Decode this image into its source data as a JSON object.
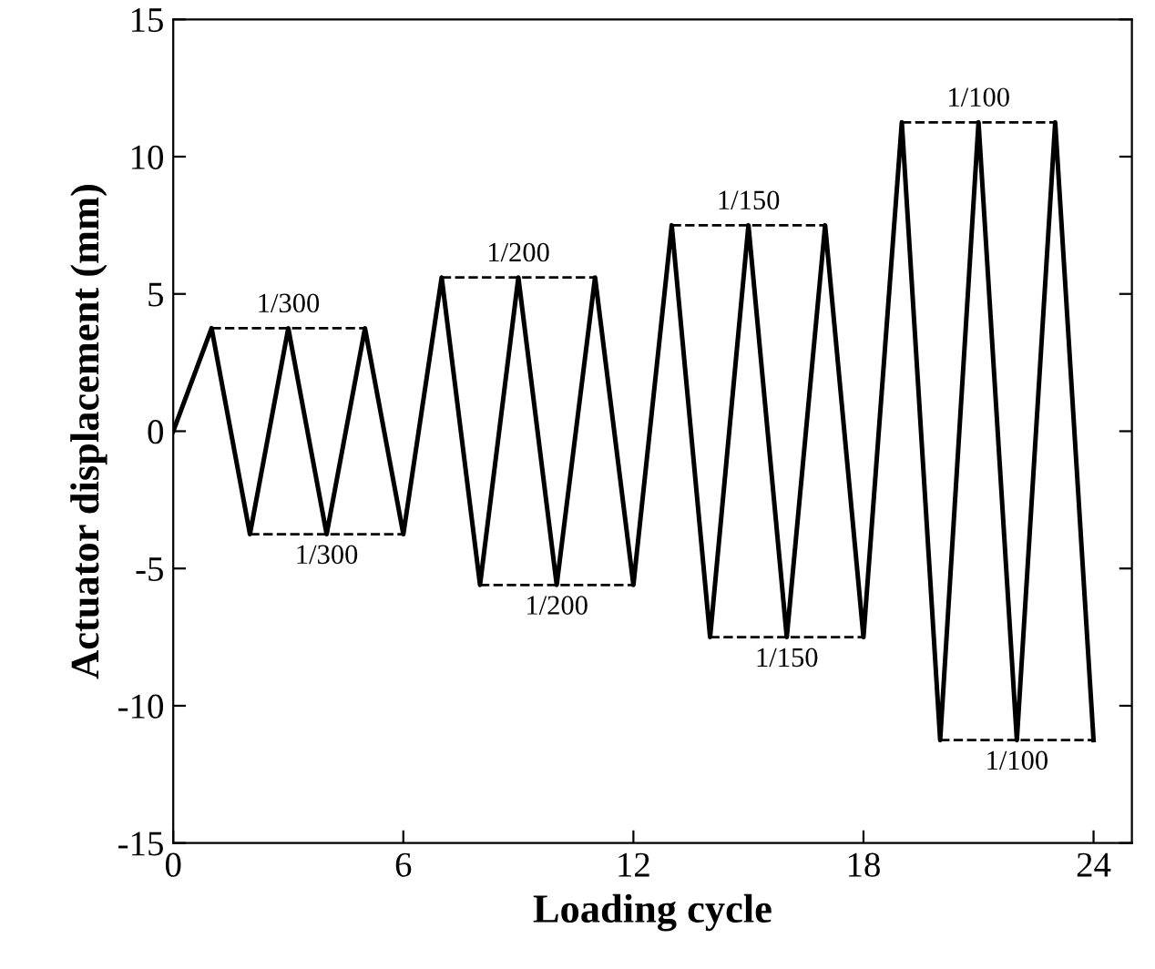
{
  "chart_data": {
    "type": "line",
    "xlabel": "Loading cycle",
    "ylabel": "Actuator displacement (mm)",
    "xlim": [
      0,
      25
    ],
    "xticks": [
      0,
      6,
      12,
      18,
      24
    ],
    "ylim": [
      -15,
      15
    ],
    "yticks": [
      -15,
      -10,
      -5,
      0,
      5,
      10,
      15
    ],
    "grid": false,
    "legend": false,
    "marker": "none",
    "series": [
      {
        "color": "#000000",
        "line_style": "solid",
        "x": [
          0,
          1,
          2,
          3,
          4,
          5,
          6,
          7,
          8,
          9,
          10,
          11,
          12,
          13,
          14,
          15,
          16,
          17,
          18,
          19,
          20,
          21,
          22,
          23,
          24
        ],
        "values": [
          0,
          3.75,
          -3.75,
          3.75,
          -3.75,
          3.75,
          -3.75,
          5.6,
          -5.6,
          5.6,
          -5.6,
          5.6,
          -5.6,
          7.5,
          -7.5,
          7.5,
          -7.5,
          7.5,
          -7.5,
          11.25,
          -11.25,
          11.25,
          -11.25,
          11.25,
          -11.25
        ]
      },
      {
        "color": "#000000",
        "line_style": "dashed",
        "x": [
          1,
          5
        ],
        "values": [
          3.75,
          3.75
        ]
      },
      {
        "color": "#000000",
        "line_style": "dashed",
        "x": [
          2,
          6
        ],
        "values": [
          -3.75,
          -3.75
        ]
      },
      {
        "color": "#000000",
        "line_style": "dashed",
        "x": [
          7,
          11
        ],
        "values": [
          5.6,
          5.6
        ]
      },
      {
        "color": "#000000",
        "line_style": "dashed",
        "x": [
          8,
          12
        ],
        "values": [
          -5.6,
          -5.6
        ]
      },
      {
        "color": "#000000",
        "line_style": "dashed",
        "x": [
          13,
          17
        ],
        "values": [
          7.5,
          7.5
        ]
      },
      {
        "color": "#000000",
        "line_style": "dashed",
        "x": [
          14,
          18
        ],
        "values": [
          -7.5,
          -7.5
        ]
      },
      {
        "color": "#000000",
        "line_style": "dashed",
        "x": [
          19,
          23
        ],
        "values": [
          11.25,
          11.25
        ]
      },
      {
        "color": "#000000",
        "line_style": "dashed",
        "x": [
          20,
          24
        ],
        "values": [
          -11.25,
          -11.25
        ]
      }
    ],
    "annotations": [
      {
        "text": "1/300",
        "x": 3,
        "y": 3.75
      },
      {
        "text": "1/300",
        "x": 4,
        "y": -3.75
      },
      {
        "text": "1/200",
        "x": 9,
        "y": 5.6
      },
      {
        "text": "1/200",
        "x": 10,
        "y": -5.6
      },
      {
        "text": "1/150",
        "x": 15,
        "y": 7.5
      },
      {
        "text": "1/150",
        "x": 16,
        "y": -7.5
      },
      {
        "text": "1/100",
        "x": 21,
        "y": 11.25
      },
      {
        "text": "1/100",
        "x": 22,
        "y": -11.25
      }
    ]
  }
}
